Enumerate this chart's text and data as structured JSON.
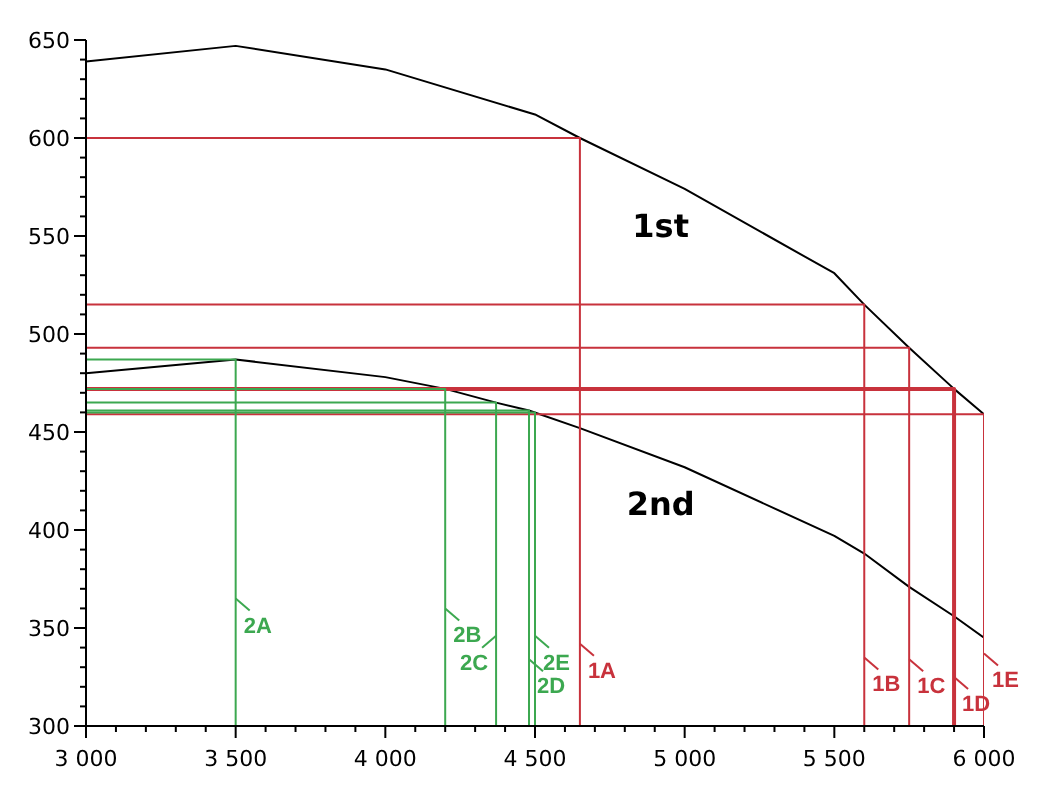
{
  "chart_data": {
    "type": "line",
    "marker": "none",
    "line_style": "solid",
    "grid": false,
    "legend": false,
    "xlim": [
      3000,
      6000
    ],
    "ylim": [
      300,
      650
    ],
    "xticks": [
      {
        "value": 3000,
        "label": "3 000"
      },
      {
        "value": 3100,
        "label": null
      },
      {
        "value": 3200,
        "label": null
      },
      {
        "value": 3300,
        "label": null
      },
      {
        "value": 3400,
        "label": null
      },
      {
        "value": 3500,
        "label": "3 500"
      },
      {
        "value": 3600,
        "label": null
      },
      {
        "value": 3700,
        "label": null
      },
      {
        "value": 3800,
        "label": null
      },
      {
        "value": 3900,
        "label": null
      },
      {
        "value": 4000,
        "label": "4 000"
      },
      {
        "value": 4100,
        "label": null
      },
      {
        "value": 4200,
        "label": null
      },
      {
        "value": 4300,
        "label": null
      },
      {
        "value": 4400,
        "label": null
      },
      {
        "value": 4500,
        "label": "4 500"
      },
      {
        "value": 4600,
        "label": null
      },
      {
        "value": 4700,
        "label": null
      },
      {
        "value": 4800,
        "label": null
      },
      {
        "value": 4900,
        "label": null
      },
      {
        "value": 5000,
        "label": "5 000"
      },
      {
        "value": 5100,
        "label": null
      },
      {
        "value": 5200,
        "label": null
      },
      {
        "value": 5300,
        "label": null
      },
      {
        "value": 5400,
        "label": null
      },
      {
        "value": 5500,
        "label": "5 500"
      },
      {
        "value": 5600,
        "label": null
      },
      {
        "value": 5700,
        "label": null
      },
      {
        "value": 5800,
        "label": null
      },
      {
        "value": 5900,
        "label": null
      },
      {
        "value": 6000,
        "label": "6 000"
      }
    ],
    "yticks": [
      300,
      {
        "value": 310,
        "label": null
      },
      {
        "value": 320,
        "label": null
      },
      {
        "value": 330,
        "label": null
      },
      {
        "value": 340,
        "label": null
      },
      350,
      {
        "value": 360,
        "label": null
      },
      {
        "value": 370,
        "label": null
      },
      {
        "value": 380,
        "label": null
      },
      {
        "value": 390,
        "label": null
      },
      400,
      {
        "value": 410,
        "label": null
      },
      {
        "value": 420,
        "label": null
      },
      {
        "value": 430,
        "label": null
      },
      {
        "value": 440,
        "label": null
      },
      450,
      {
        "value": 460,
        "label": null
      },
      {
        "value": 470,
        "label": null
      },
      {
        "value": 480,
        "label": null
      },
      {
        "value": 490,
        "label": null
      },
      500,
      {
        "value": 510,
        "label": null
      },
      {
        "value": 520,
        "label": null
      },
      {
        "value": 530,
        "label": null
      },
      {
        "value": 540,
        "label": null
      },
      550,
      {
        "value": 560,
        "label": null
      },
      {
        "value": 570,
        "label": null
      },
      {
        "value": 580,
        "label": null
      },
      {
        "value": 590,
        "label": null
      },
      600,
      {
        "value": 610,
        "label": null
      },
      {
        "value": 620,
        "label": null
      },
      {
        "value": 630,
        "label": null
      },
      {
        "value": 640,
        "label": null
      },
      650
    ],
    "series": [
      {
        "name": "1st",
        "type": "line",
        "color": "#000000",
        "x": [
          3000,
          3500,
          4000,
          4500,
          4650,
          5000,
          5500,
          5600,
          5750,
          5900,
          6000
        ],
        "values": [
          639,
          647,
          635,
          612,
          600,
          574,
          531,
          515,
          493,
          472,
          459
        ]
      },
      {
        "name": "2nd",
        "type": "line",
        "color": "#000000",
        "x": [
          3000,
          3500,
          4000,
          4200,
          4370,
          4480,
          4650,
          5000,
          5500,
          5600,
          5750,
          5900,
          6000
        ],
        "values": [
          480,
          487,
          478,
          472,
          465,
          461,
          452,
          432,
          397,
          388,
          371,
          356,
          345
        ]
      },
      {
        "type": "line",
        "color": "#c8323c",
        "x": [
          3000,
          4650,
          4650
        ],
        "values": [
          600,
          600,
          300
        ]
      },
      {
        "type": "line",
        "color": "#c8323c",
        "x": [
          3000,
          5600,
          5600
        ],
        "values": [
          515,
          515,
          300
        ]
      },
      {
        "type": "line",
        "color": "#c8323c",
        "x": [
          3000,
          5750,
          5750
        ],
        "values": [
          493,
          493,
          300
        ]
      },
      {
        "type": "line",
        "color": "#c8323c",
        "x": [
          3000,
          5900,
          5900
        ],
        "values": [
          472,
          472,
          300
        ]
      },
      {
        "type": "line",
        "color": "#c8323c",
        "x": [
          3000,
          6000,
          6000
        ],
        "values": [
          459,
          459,
          300
        ]
      },
      {
        "type": "line",
        "color": "#3ca850",
        "x": [
          3000,
          3500,
          3500
        ],
        "values": [
          487,
          487,
          300
        ]
      },
      {
        "type": "line",
        "color": "#3ca850",
        "x": [
          3000,
          4200,
          4200
        ],
        "values": [
          472,
          472,
          300
        ]
      },
      {
        "type": "line",
        "color": "#3ca850",
        "x": [
          3000,
          4370,
          4370
        ],
        "values": [
          465,
          465,
          300
        ]
      },
      {
        "type": "line",
        "color": "#3ca850",
        "x": [
          3000,
          4480,
          4480
        ],
        "values": [
          461,
          461,
          300
        ]
      },
      {
        "type": "line",
        "color": "#3ca850",
        "x": [
          3000,
          4500,
          4500
        ],
        "values": [
          460,
          460,
          300
        ]
      }
    ],
    "annotations": [
      {
        "text": "2A",
        "x": 3500,
        "y": 365
      },
      {
        "text": "2B",
        "x": 4200,
        "y": 360
      },
      {
        "text": "2C",
        "x": 4370,
        "y": 346
      },
      {
        "text": "2D",
        "x": 4480,
        "y": 334
      },
      {
        "text": "2E",
        "x": 4500,
        "y": 346
      },
      {
        "text": "1A",
        "x": 4650,
        "y": 342
      },
      {
        "text": "1B",
        "x": 5600,
        "y": 335
      },
      {
        "text": "1C",
        "x": 5750,
        "y": 334
      },
      {
        "text": "1D",
        "x": 5900,
        "y": 325
      },
      {
        "text": "1E",
        "x": 6000,
        "y": 337
      }
    ]
  }
}
